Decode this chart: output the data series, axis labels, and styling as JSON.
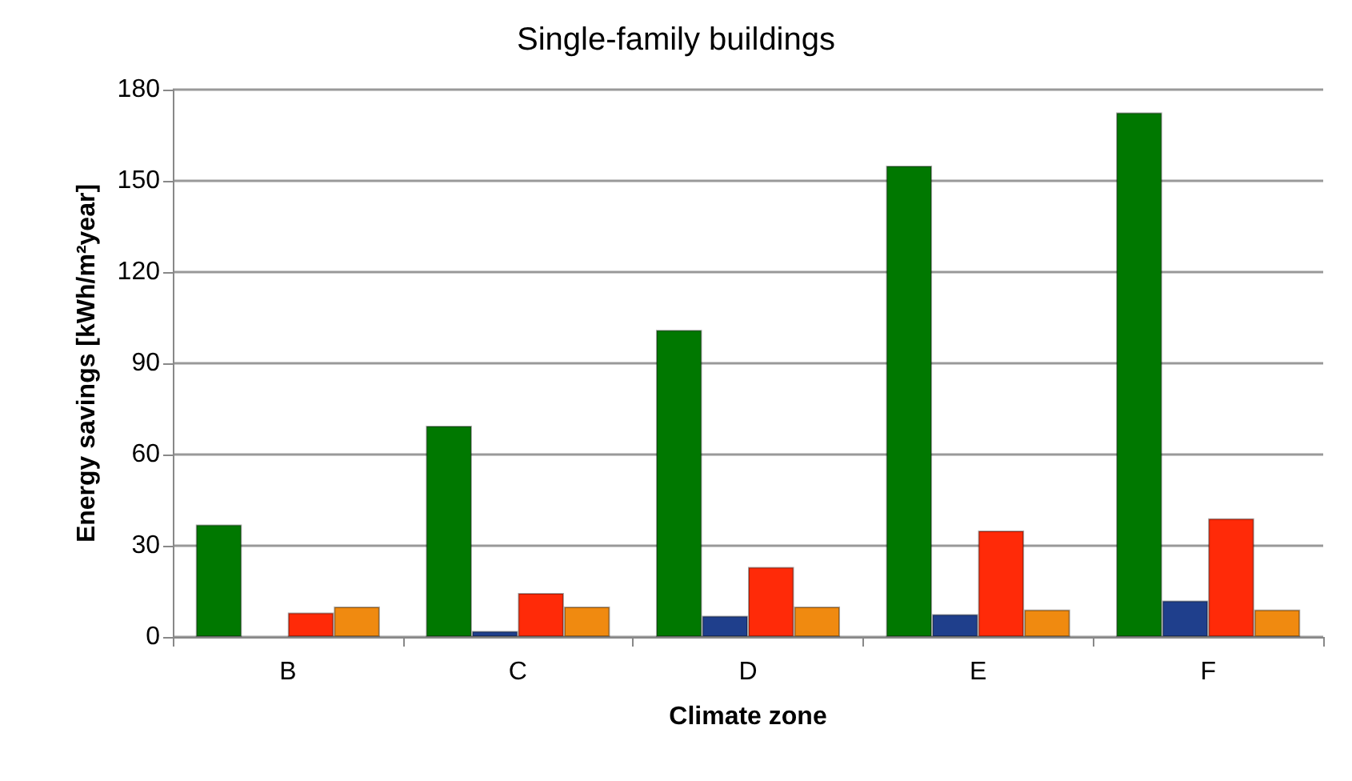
{
  "chart_data": {
    "type": "bar",
    "title": "Single-family buildings",
    "xlabel": "Climate zone",
    "ylabel": "Energy savings [kWh/m²year]",
    "categories": [
      "B",
      "C",
      "D",
      "E",
      "F"
    ],
    "series": [
      {
        "color": "#007800",
        "values": [
          37,
          69.5,
          101,
          155,
          172.5
        ]
      },
      {
        "color": "#1f3f8c",
        "values": [
          null,
          2,
          7,
          7.5,
          12
        ]
      },
      {
        "color": "#ff2a08",
        "values": [
          8,
          14.5,
          23,
          35,
          39
        ]
      },
      {
        "color": "#f08a10",
        "values": [
          10,
          10,
          10,
          9,
          9
        ]
      }
    ],
    "ylim": [
      0,
      180
    ],
    "yticks": [
      0,
      30,
      60,
      90,
      120,
      150,
      180
    ],
    "grid": "y"
  }
}
